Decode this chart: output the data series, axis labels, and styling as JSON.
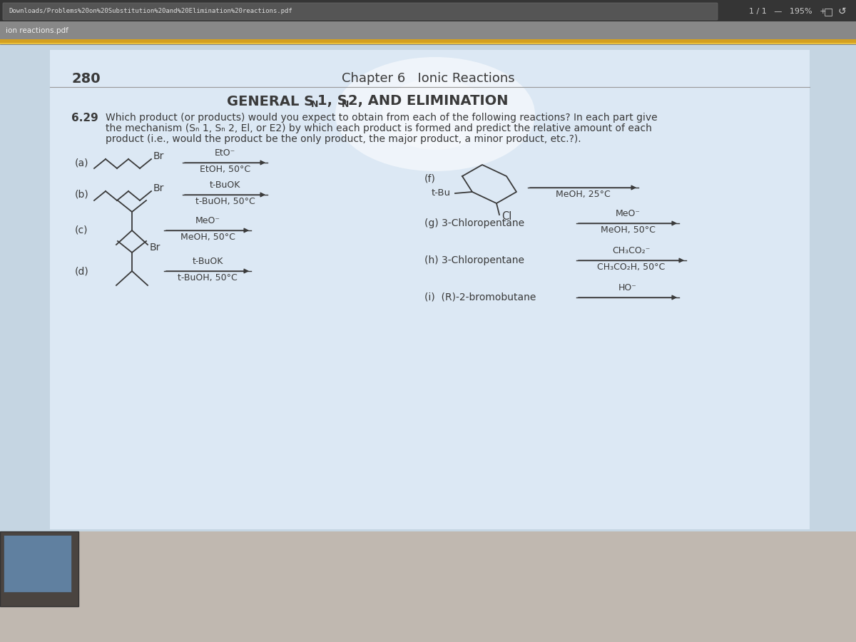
{
  "bg_wall": "#b8b0a8",
  "bg_screen": "#c8d8e4",
  "bg_page": "#dce8f4",
  "text_color": "#3a3a3a",
  "page_number": "280",
  "chapter_header": "Chapter 6   Ionic Reactions",
  "toolbar_url": "Downloads/Problems%20on%20Substitution%20and%20Elimination%20reactions.pdf",
  "toolbar_zoom": "1 / 1   —   195%   +",
  "sidebar": "ion reactions.pdf",
  "toolbar_dark_bg": "#3a3a3a",
  "toolbar_light_bg": "#c8c8c8",
  "gold_stripe": "#c8a030"
}
